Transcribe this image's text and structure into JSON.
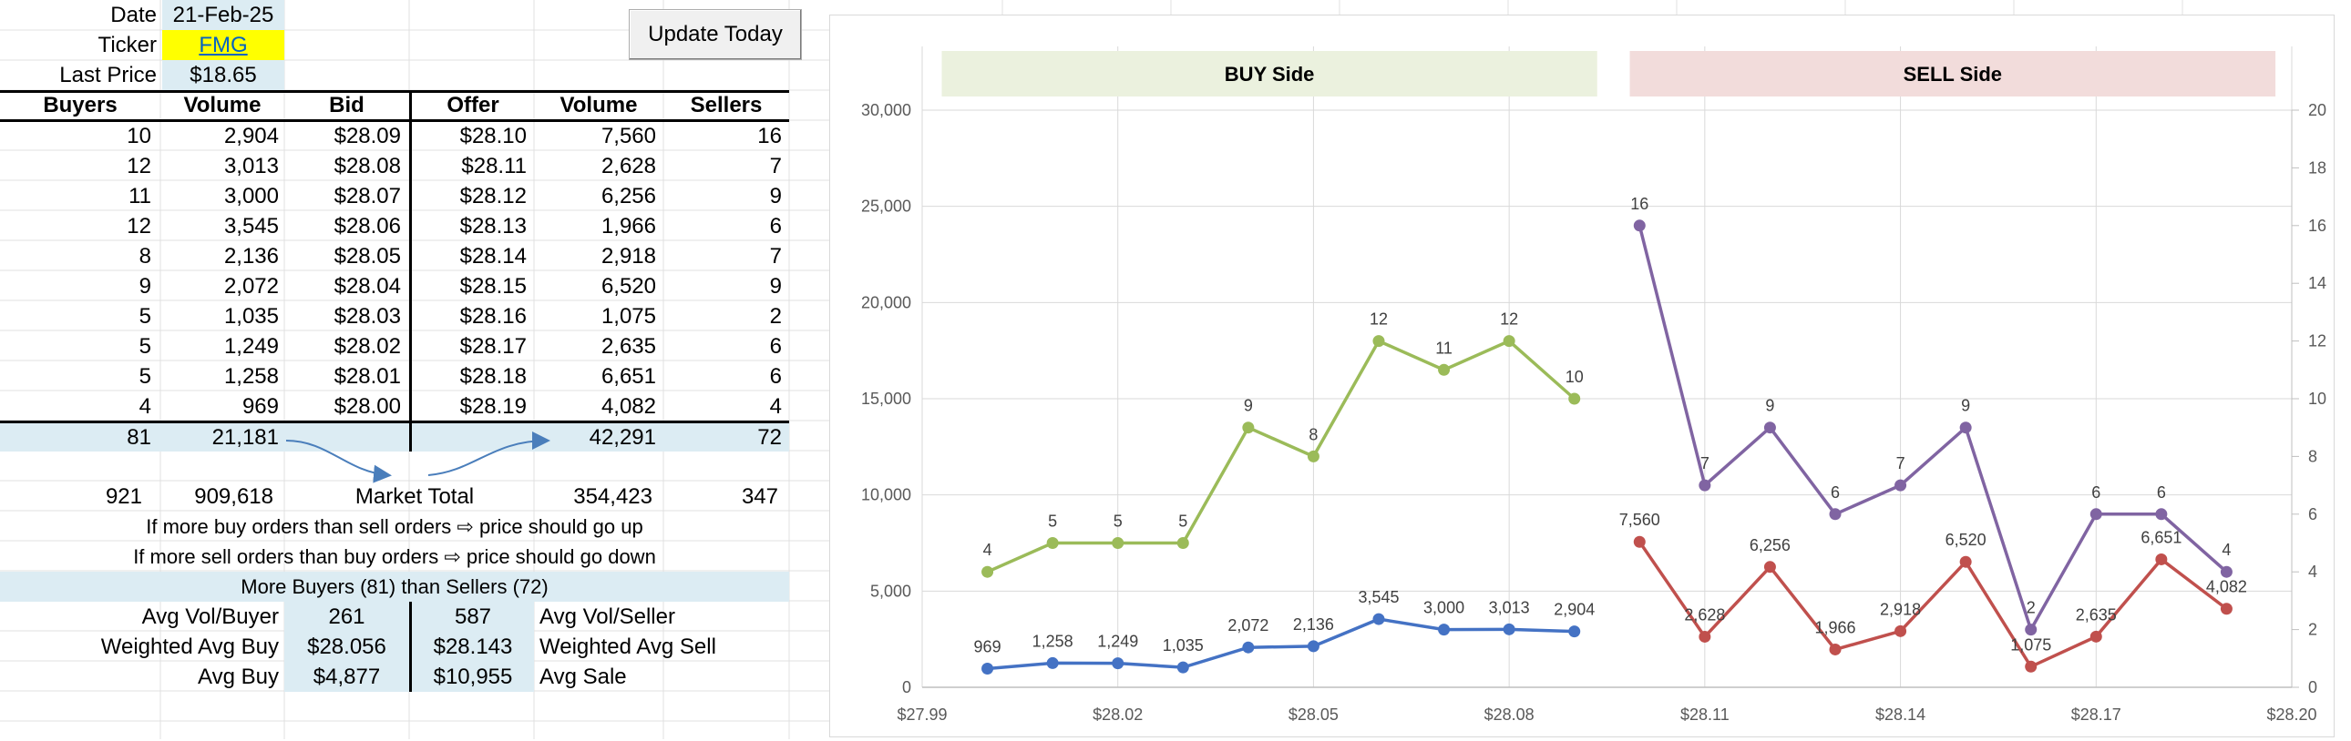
{
  "header": {
    "date_label": "Date",
    "date_value": "21-Feb-25",
    "ticker_label": "Ticker",
    "ticker_value": "FMG",
    "last_price_label": "Last Price",
    "last_price_value": "$18.65"
  },
  "update_button": "Update Today",
  "depth_table": {
    "columns": [
      "Buyers",
      "Volume",
      "Bid",
      "Offer",
      "Volume",
      "Sellers"
    ],
    "rows": [
      [
        "10",
        "2,904",
        "$28.09",
        "$28.10",
        "7,560",
        "16"
      ],
      [
        "12",
        "3,013",
        "$28.08",
        "$28.11",
        "2,628",
        "7"
      ],
      [
        "11",
        "3,000",
        "$28.07",
        "$28.12",
        "6,256",
        "9"
      ],
      [
        "12",
        "3,545",
        "$28.06",
        "$28.13",
        "1,966",
        "6"
      ],
      [
        "8",
        "2,136",
        "$28.05",
        "$28.14",
        "2,918",
        "7"
      ],
      [
        "9",
        "2,072",
        "$28.04",
        "$28.15",
        "6,520",
        "9"
      ],
      [
        "5",
        "1,035",
        "$28.03",
        "$28.16",
        "1,075",
        "2"
      ],
      [
        "5",
        "1,249",
        "$28.02",
        "$28.17",
        "2,635",
        "6"
      ],
      [
        "5",
        "1,258",
        "$28.01",
        "$28.18",
        "6,651",
        "6"
      ],
      [
        "4",
        "969",
        "$28.00",
        "$28.19",
        "4,082",
        "4"
      ]
    ],
    "totals": {
      "buyers": "81",
      "buy_volume": "21,181",
      "sell_volume": "42,291",
      "sellers": "72"
    },
    "market": {
      "buyers": "921",
      "buy_volume": "909,618",
      "label": "Market Total",
      "sell_volume": "354,423",
      "sellers": "347"
    }
  },
  "notes": {
    "line1": "If more buy orders than sell orders ⇨ price should go up",
    "line2": "If more sell orders than buy orders ⇨ price should go down",
    "summary": "More Buyers (81) than Sellers (72)"
  },
  "stats": [
    {
      "left_label": "Avg Vol/Buyer",
      "left_value": "261",
      "right_value": "587",
      "right_label": "Avg Vol/Seller"
    },
    {
      "left_label": "Weighted Avg Buy",
      "left_value": "$28.056",
      "right_value": "$28.143",
      "right_label": "Weighted Avg Sell"
    },
    {
      "left_label": "Avg Buy",
      "left_value": "$4,877",
      "right_value": "$10,955",
      "right_label": "Avg Sale"
    }
  ],
  "colors": {
    "buy_volume": "#4472c4",
    "buy_count": "#9bbb59",
    "sell_volume": "#c0504d",
    "sell_count": "#8064a2",
    "buy_band": "#ebf1de",
    "sell_band": "#f2dcdb",
    "cell_blue": "#dcecf3",
    "cell_yellow": "#ffff00"
  },
  "chart_data": {
    "type": "line",
    "bands": [
      {
        "label": "BUY Side"
      },
      {
        "label": "SELL Side"
      }
    ],
    "x_axis": {
      "min": 27.99,
      "max": 28.2,
      "ticks": [
        "$27.99",
        "$28.02",
        "$28.05",
        "$28.08",
        "$28.11",
        "$28.14",
        "$28.17",
        "$28.20"
      ]
    },
    "y_left": {
      "min": 0,
      "max": 30000,
      "ticks": [
        "0",
        "5,000",
        "10,000",
        "15,000",
        "20,000",
        "25,000",
        "30,000"
      ]
    },
    "y_right": {
      "min": 0,
      "max": 20,
      "ticks": [
        "0",
        "2",
        "4",
        "6",
        "8",
        "10",
        "12",
        "14",
        "16",
        "18",
        "20"
      ]
    },
    "series": [
      {
        "axis": "left",
        "x": [
          28.0,
          28.01,
          28.02,
          28.03,
          28.04,
          28.05,
          28.06,
          28.07,
          28.08,
          28.09
        ],
        "values": [
          969,
          1258,
          1249,
          1035,
          2072,
          2136,
          3545,
          3000,
          3013,
          2904
        ],
        "labels": [
          "969",
          "1,258",
          "1,249",
          "1,035",
          "2,072",
          "2,136",
          "3,545",
          "3,000",
          "3,013",
          "2,904"
        ]
      },
      {
        "axis": "right",
        "x": [
          28.0,
          28.01,
          28.02,
          28.03,
          28.04,
          28.05,
          28.06,
          28.07,
          28.08,
          28.09
        ],
        "values": [
          4,
          5,
          5,
          5,
          9,
          8,
          12,
          11,
          12,
          10
        ],
        "labels": [
          "4",
          "5",
          "5",
          "5",
          "9",
          "8",
          "12",
          "11",
          "12",
          "10"
        ]
      },
      {
        "axis": "left",
        "x": [
          28.1,
          28.11,
          28.12,
          28.13,
          28.14,
          28.15,
          28.16,
          28.17,
          28.18,
          28.19
        ],
        "values": [
          7560,
          2628,
          6256,
          1966,
          2918,
          6520,
          1075,
          2635,
          6651,
          4082
        ],
        "labels": [
          "7,560",
          "2,628",
          "6,256",
          "1,966",
          "2,918",
          "6,520",
          "1,075",
          "2,635",
          "6,651",
          "4,082"
        ]
      },
      {
        "axis": "right",
        "x": [
          28.1,
          28.11,
          28.12,
          28.13,
          28.14,
          28.15,
          28.16,
          28.17,
          28.18,
          28.19
        ],
        "values": [
          16,
          7,
          9,
          6,
          7,
          9,
          2,
          6,
          6,
          4
        ],
        "labels": [
          "16",
          "7",
          "9",
          "6",
          "7",
          "9",
          "2",
          "6",
          "6",
          "4"
        ]
      }
    ]
  }
}
